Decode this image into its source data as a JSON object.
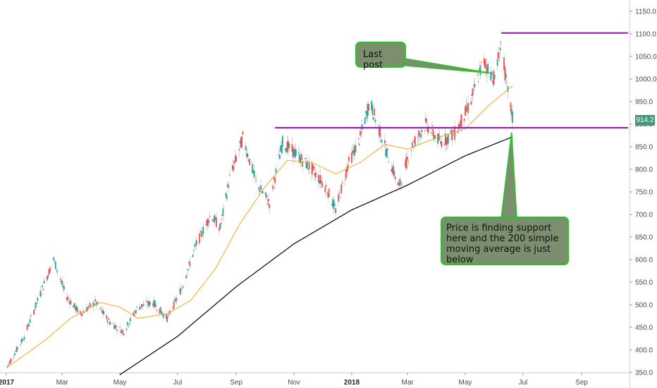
{
  "chart_data": {
    "type": "candlestick",
    "title": "",
    "xlabel": "",
    "ylabel": "",
    "ylim": [
      340,
      1175
    ],
    "y_ticks": [
      350,
      400,
      450,
      500,
      550,
      600,
      650,
      700,
      750,
      800,
      850,
      900,
      950,
      1000,
      1050,
      1100,
      1150
    ],
    "x_tick_labels": [
      "2017",
      "Mar",
      "May",
      "Jul",
      "Sep",
      "Nov",
      "2018",
      "Mar",
      "May",
      "Jul",
      "Sep"
    ],
    "x_tick_bold": [
      true,
      false,
      false,
      false,
      false,
      false,
      true,
      false,
      false,
      false,
      false
    ],
    "grid": false,
    "colors": {
      "up": "#26a69a",
      "down": "#ef5350",
      "sma_short": "#f5a623",
      "sma_200": "#111111",
      "level_line": "#9c27b0",
      "annotation_border": "#22c71f",
      "annotation_fill": "#7b8f6e"
    },
    "price_path": [
      {
        "date": "2017-01-01",
        "v": 360
      },
      {
        "date": "2017-01-20",
        "v": 430
      },
      {
        "date": "2017-02-05",
        "v": 520
      },
      {
        "date": "2017-02-20",
        "v": 600
      },
      {
        "date": "2017-03-05",
        "v": 520
      },
      {
        "date": "2017-03-20",
        "v": 480
      },
      {
        "date": "2017-04-05",
        "v": 505
      },
      {
        "date": "2017-04-20",
        "v": 462
      },
      {
        "date": "2017-05-05",
        "v": 440
      },
      {
        "date": "2017-05-20",
        "v": 495
      },
      {
        "date": "2017-06-05",
        "v": 505
      },
      {
        "date": "2017-06-20",
        "v": 470
      },
      {
        "date": "2017-07-05",
        "v": 535
      },
      {
        "date": "2017-07-20",
        "v": 630
      },
      {
        "date": "2017-08-05",
        "v": 700
      },
      {
        "date": "2017-08-15",
        "v": 670
      },
      {
        "date": "2017-08-25",
        "v": 780
      },
      {
        "date": "2017-09-08",
        "v": 870
      },
      {
        "date": "2017-09-22",
        "v": 770
      },
      {
        "date": "2017-10-06",
        "v": 725
      },
      {
        "date": "2017-10-20",
        "v": 860
      },
      {
        "date": "2017-11-05",
        "v": 830
      },
      {
        "date": "2017-11-20",
        "v": 800
      },
      {
        "date": "2017-12-05",
        "v": 760
      },
      {
        "date": "2017-12-15",
        "v": 710
      },
      {
        "date": "2017-12-28",
        "v": 810
      },
      {
        "date": "2018-01-10",
        "v": 870
      },
      {
        "date": "2018-01-20",
        "v": 950
      },
      {
        "date": "2018-02-05",
        "v": 850
      },
      {
        "date": "2018-02-20",
        "v": 760
      },
      {
        "date": "2018-03-05",
        "v": 850
      },
      {
        "date": "2018-03-20",
        "v": 900
      },
      {
        "date": "2018-04-05",
        "v": 860
      },
      {
        "date": "2018-04-20",
        "v": 880
      },
      {
        "date": "2018-05-05",
        "v": 940
      },
      {
        "date": "2018-05-20",
        "v": 1040
      },
      {
        "date": "2018-06-01",
        "v": 1000
      },
      {
        "date": "2018-06-08",
        "v": 1080
      },
      {
        "date": "2018-06-14",
        "v": 980
      },
      {
        "date": "2018-06-20",
        "v": 914
      }
    ],
    "sma_short": [
      {
        "date": "2017-01-01",
        "v": 360
      },
      {
        "date": "2017-02-10",
        "v": 420
      },
      {
        "date": "2017-03-10",
        "v": 470
      },
      {
        "date": "2017-04-10",
        "v": 505
      },
      {
        "date": "2017-05-01",
        "v": 495
      },
      {
        "date": "2017-05-20",
        "v": 470
      },
      {
        "date": "2017-06-20",
        "v": 480
      },
      {
        "date": "2017-07-15",
        "v": 510
      },
      {
        "date": "2017-08-10",
        "v": 580
      },
      {
        "date": "2017-09-05",
        "v": 680
      },
      {
        "date": "2017-10-01",
        "v": 760
      },
      {
        "date": "2017-10-25",
        "v": 820
      },
      {
        "date": "2017-11-20",
        "v": 815
      },
      {
        "date": "2017-12-15",
        "v": 790
      },
      {
        "date": "2018-01-10",
        "v": 815
      },
      {
        "date": "2018-02-05",
        "v": 855
      },
      {
        "date": "2018-03-01",
        "v": 845
      },
      {
        "date": "2018-04-01",
        "v": 870
      },
      {
        "date": "2018-05-01",
        "v": 890
      },
      {
        "date": "2018-05-25",
        "v": 940
      },
      {
        "date": "2018-06-20",
        "v": 985
      }
    ],
    "sma_200": [
      {
        "date": "2017-05-01",
        "v": 345
      },
      {
        "date": "2017-07-01",
        "v": 430
      },
      {
        "date": "2017-09-01",
        "v": 540
      },
      {
        "date": "2017-11-01",
        "v": 635
      },
      {
        "date": "2018-01-01",
        "v": 710
      },
      {
        "date": "2018-03-01",
        "v": 765
      },
      {
        "date": "2018-05-01",
        "v": 830
      },
      {
        "date": "2018-06-20",
        "v": 872
      }
    ],
    "levels": [
      {
        "value": 1102,
        "from": "2018-06-08",
        "to": "2018-10-20"
      },
      {
        "value": 892,
        "from": "2017-10-12",
        "to": "2018-10-20"
      }
    ],
    "last_price": "914.2",
    "annotations": [
      {
        "text": "Last post",
        "points_to": {
          "date": "2018-05-28",
          "v": 1013
        }
      },
      {
        "text": "Price is finding support here and the 200 simple moving average is just below",
        "points_to": {
          "date": "2018-06-19",
          "v": 882
        }
      }
    ]
  }
}
